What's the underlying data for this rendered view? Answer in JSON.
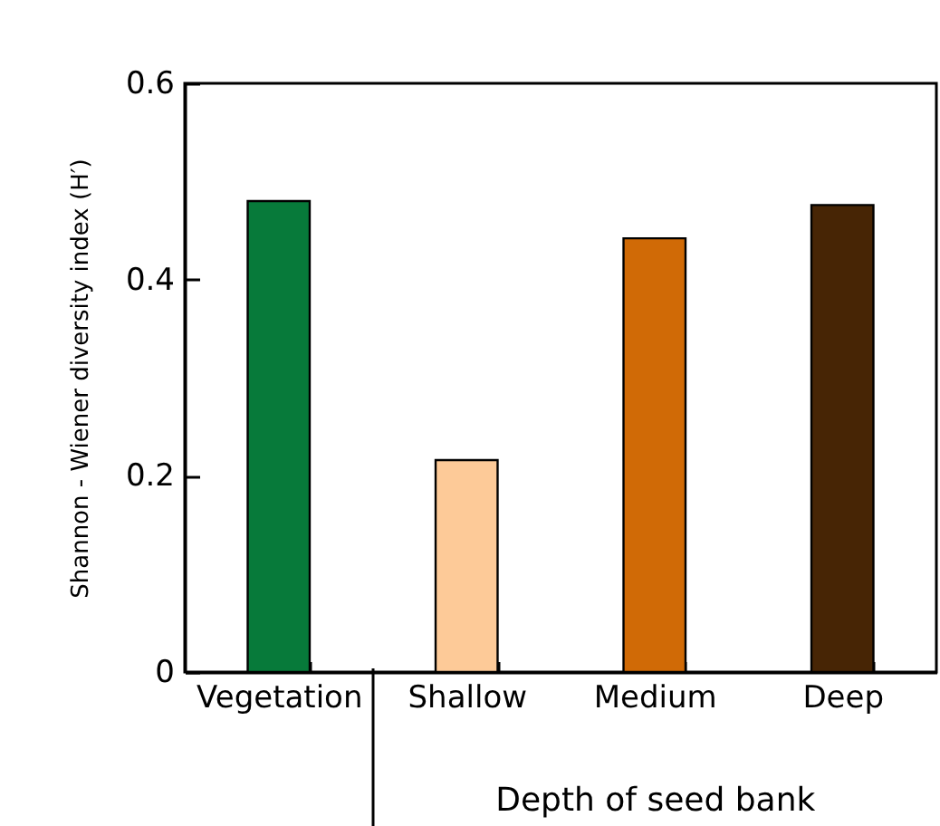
{
  "chart_data": {
    "type": "bar",
    "xlabel": "Depth of seed bank",
    "ylabel": "Shannon - Wiener diversity index (H′)",
    "categories": [
      "Vegetation",
      "Shallow",
      "Medium",
      "Deep"
    ],
    "values": [
      0.48,
      0.216,
      0.442,
      0.476
    ],
    "colors": [
      "#077a3a",
      "#fdca98",
      "#d06a06",
      "#472505"
    ],
    "ylim": [
      0,
      0.6
    ],
    "yticks": [
      0,
      0.2,
      0.4,
      0.6
    ],
    "grid": false
  }
}
